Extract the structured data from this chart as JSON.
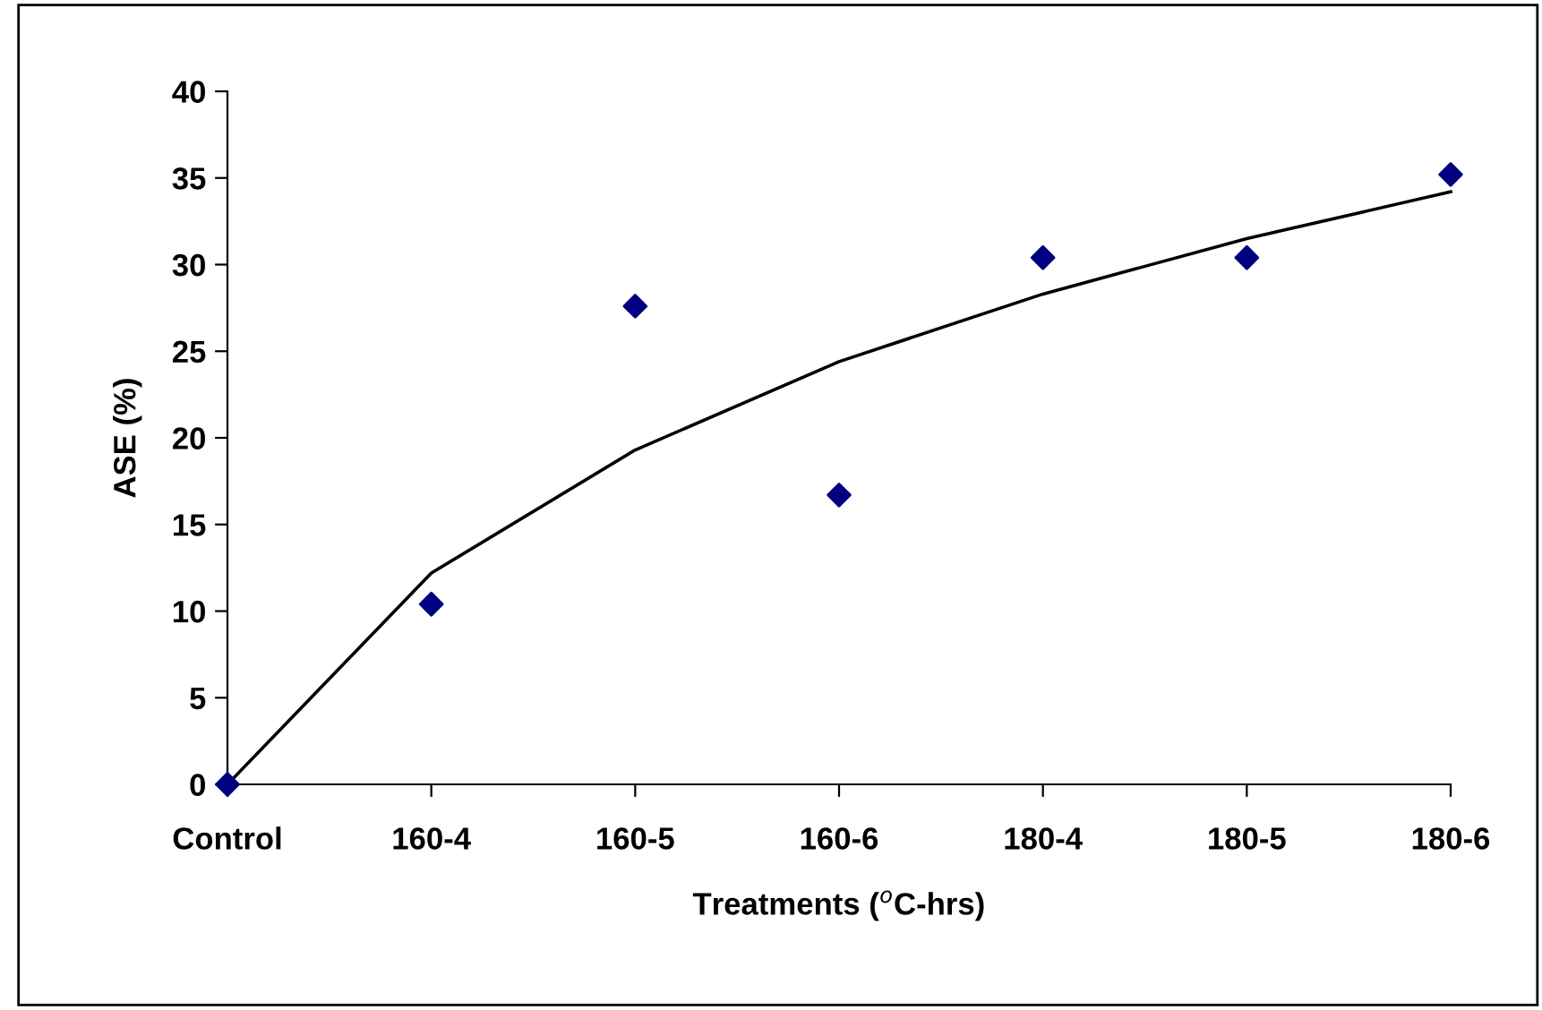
{
  "chart_data": {
    "type": "scatter",
    "xlabel": "Treatments ($^{o}$C-hrs)",
    "ylabel": "ASE (%)",
    "categories": [
      "Control",
      "160-4",
      "160-5",
      "160-6",
      "180-4",
      "180-5",
      "180-6"
    ],
    "ylim": [
      0,
      40
    ],
    "yticks": [
      0,
      5,
      10,
      15,
      20,
      25,
      30,
      35,
      40
    ],
    "grid": false,
    "legend": false,
    "series": [
      {
        "color": "#000080",
        "marker": "diamond",
        "values": [
          0,
          10.4,
          27.6,
          16.7,
          30.4,
          30.4,
          35.2
        ]
      },
      {
        "type": "line",
        "color": "#000000",
        "marker": "none",
        "line_style": "solid",
        "values": [
          0,
          12.2,
          19.3,
          24.4,
          28.3,
          31.5,
          34.2
        ]
      }
    ]
  }
}
